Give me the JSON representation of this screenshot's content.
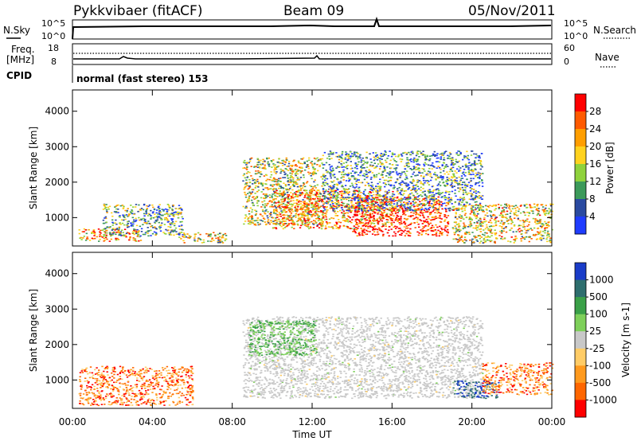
{
  "header": {
    "radar_title": "Pykkvibaer (fitACF)",
    "beam": "Beam 09",
    "date": "05/Nov/2011"
  },
  "top_panels": {
    "nsky_label": "N.Sky",
    "nsearch_label": "N.Search",
    "nsky_ticks": [
      "10^5",
      "10^0"
    ],
    "nsearch_ticks": [
      "10^5",
      "10^0"
    ],
    "freq_label_1": "Freq.",
    "freq_label_2": "[MHz]",
    "freq_ticks": [
      "18",
      "8"
    ],
    "nave_label": "Nave",
    "nave_ticks": [
      "60",
      "0"
    ],
    "cpid_label": "CPID",
    "cpid_text": "normal (fast stereo) 153"
  },
  "chart_data": [
    {
      "type": "heatmap",
      "name": "power-panel",
      "ylabel": "Slant Range [km]",
      "ylim": [
        200,
        4600
      ],
      "yticks": [
        1000,
        2000,
        3000,
        4000
      ],
      "xlim": [
        0,
        24
      ],
      "colorbar_label": "Power [dB]",
      "colorbar_ticks": [
        "28",
        "24",
        "20",
        "16",
        "12",
        "8",
        "4"
      ],
      "colorbar_colors": [
        "#ff0000",
        "#ff5a00",
        "#ff9e00",
        "#ffd21e",
        "#8fd23c",
        "#3c9a5a",
        "#2a4aa0",
        "#1f3cff"
      ],
      "regions": [
        {
          "x": [
            0.3,
            3.4
          ],
          "y": [
            350,
            700
          ],
          "level": 0.7
        },
        {
          "x": [
            1.5,
            5.5
          ],
          "y": [
            500,
            1400
          ],
          "level": 0.35
        },
        {
          "x": [
            5.3,
            7.7
          ],
          "y": [
            300,
            600
          ],
          "level": 0.5
        },
        {
          "x": [
            8.5,
            12.5
          ],
          "y": [
            800,
            2700
          ],
          "level": 0.5
        },
        {
          "x": [
            10,
            16
          ],
          "y": [
            700,
            1800
          ],
          "level": 0.7
        },
        {
          "x": [
            14,
            18.8
          ],
          "y": [
            500,
            1600
          ],
          "level": 0.95
        },
        {
          "x": [
            12.5,
            20.5
          ],
          "y": [
            1200,
            2900
          ],
          "level": 0.3
        },
        {
          "x": [
            19,
            24
          ],
          "y": [
            300,
            1400
          ],
          "level": 0.55
        }
      ]
    },
    {
      "type": "heatmap",
      "name": "velocity-panel",
      "ylabel": "Slant Range [km]",
      "ylim": [
        200,
        4600
      ],
      "yticks": [
        1000,
        2000,
        3000,
        4000
      ],
      "xlim": [
        0,
        24
      ],
      "xlabel": "Time UT",
      "xticks": [
        "00:00",
        "04:00",
        "08:00",
        "12:00",
        "16:00",
        "20:00",
        "00:00"
      ],
      "colorbar_label": "Velocity [m s-1]",
      "colorbar_ticks": [
        "1000",
        "500",
        "100",
        "25",
        "-25",
        "-100",
        "-500",
        "-1000"
      ],
      "colorbar_colors": [
        "#1a3cc8",
        "#2e6e6e",
        "#3aa048",
        "#7ed05a",
        "#c8c8c8",
        "#ffcc66",
        "#ff9a1e",
        "#ff6600",
        "#ff0000"
      ],
      "regions": [
        {
          "x": [
            0.3,
            6
          ],
          "y": [
            300,
            1400
          ],
          "level": "negative"
        },
        {
          "x": [
            8.5,
            20.5
          ],
          "y": [
            500,
            2800
          ],
          "level": "near-zero"
        },
        {
          "x": [
            8.8,
            12.2
          ],
          "y": [
            1700,
            2700
          ],
          "level": "positive"
        },
        {
          "x": [
            19,
            21.3
          ],
          "y": [
            500,
            1000
          ],
          "level": "strong-positive"
        },
        {
          "x": [
            20.5,
            24
          ],
          "y": [
            600,
            1500
          ],
          "level": "negative"
        }
      ]
    }
  ]
}
